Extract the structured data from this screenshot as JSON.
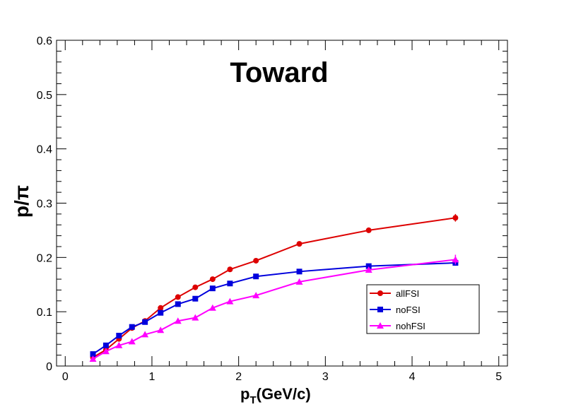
{
  "chart_data": {
    "type": "line",
    "title": "Toward",
    "xlabel_main": "p",
    "xlabel_sub": "T",
    "xlabel_rest": "(GeV/c)",
    "ylabel": "p/π",
    "xlim": [
      -0.1,
      5.1
    ],
    "ylim": [
      0,
      0.6
    ],
    "xticks": [
      0,
      1,
      2,
      3,
      4,
      5
    ],
    "yticks": [
      0,
      0.1,
      0.2,
      0.3,
      0.4,
      0.5,
      0.6
    ],
    "grid": false,
    "legend_position": "lower-right",
    "series": [
      {
        "name": "allFSI",
        "color": "#dd0000",
        "marker": "circle",
        "x": [
          0.32,
          0.47,
          0.62,
          0.77,
          0.92,
          1.1,
          1.3,
          1.5,
          1.7,
          1.9,
          2.2,
          2.7,
          3.5,
          4.5
        ],
        "y": [
          0.016,
          0.03,
          0.05,
          0.07,
          0.083,
          0.107,
          0.127,
          0.145,
          0.16,
          0.178,
          0.194,
          0.225,
          0.25,
          0.273
        ],
        "err": [
          0.002,
          0.002,
          0.002,
          0.002,
          0.002,
          0.002,
          0.002,
          0.002,
          0.002,
          0.002,
          0.003,
          0.003,
          0.004,
          0.007
        ]
      },
      {
        "name": "noFSI",
        "color": "#0000dd",
        "marker": "square",
        "x": [
          0.32,
          0.47,
          0.62,
          0.77,
          0.92,
          1.1,
          1.3,
          1.5,
          1.7,
          1.9,
          2.2,
          2.7,
          3.5,
          4.5
        ],
        "y": [
          0.022,
          0.038,
          0.056,
          0.072,
          0.081,
          0.098,
          0.114,
          0.124,
          0.143,
          0.152,
          0.165,
          0.174,
          0.184,
          0.19
        ],
        "err": [
          0.002,
          0.002,
          0.002,
          0.002,
          0.002,
          0.002,
          0.002,
          0.002,
          0.002,
          0.002,
          0.003,
          0.003,
          0.004,
          0.005
        ]
      },
      {
        "name": "nohFSI",
        "color": "#ff00ff",
        "marker": "triangle",
        "x": [
          0.32,
          0.47,
          0.62,
          0.77,
          0.92,
          1.1,
          1.3,
          1.5,
          1.7,
          1.9,
          2.2,
          2.7,
          3.5,
          4.5
        ],
        "y": [
          0.013,
          0.027,
          0.038,
          0.045,
          0.058,
          0.066,
          0.083,
          0.089,
          0.107,
          0.119,
          0.13,
          0.155,
          0.177,
          0.196
        ],
        "err": [
          0.002,
          0.002,
          0.002,
          0.002,
          0.002,
          0.003,
          0.003,
          0.003,
          0.003,
          0.003,
          0.003,
          0.004,
          0.005,
          0.009
        ]
      }
    ]
  }
}
